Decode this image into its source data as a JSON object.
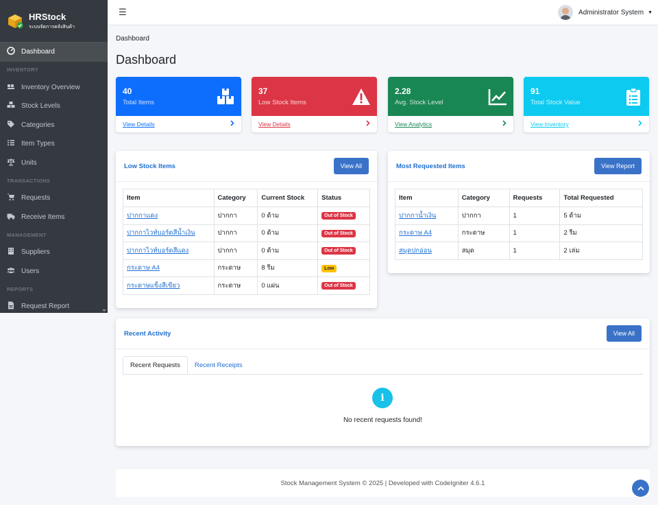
{
  "brand": {
    "title": "HRStock",
    "subtitle": "ระบบจัดการคลังสินค้า"
  },
  "sidebar": {
    "items": [
      {
        "label": "Dashboard",
        "icon": "dashboard-icon",
        "active": true
      },
      {
        "header": "INVENTORY"
      },
      {
        "label": "Inventory Overview",
        "icon": "dolly-icon"
      },
      {
        "label": "Stock Levels",
        "icon": "cubes-icon"
      },
      {
        "label": "Categories",
        "icon": "tags-icon"
      },
      {
        "label": "Item Types",
        "icon": "list-icon"
      },
      {
        "label": "Units",
        "icon": "balance-scale-icon"
      },
      {
        "header": "TRANSACTIONS"
      },
      {
        "label": "Requests",
        "icon": "cart-icon"
      },
      {
        "label": "Receive Items",
        "icon": "truck-icon"
      },
      {
        "header": "MANAGEMENT"
      },
      {
        "label": "Suppliers",
        "icon": "building-icon"
      },
      {
        "label": "Users",
        "icon": "users-icon"
      },
      {
        "header": "REPORTS"
      },
      {
        "label": "Request Report",
        "icon": "file-icon"
      }
    ]
  },
  "navbar": {
    "user": "Administrator System"
  },
  "breadcrumb": "Dashboard",
  "page_title": "Dashboard",
  "stats": [
    {
      "value": "40",
      "label": "Total Items",
      "link": "View Details",
      "color": "#0d6efd",
      "icon": "boxes-icon"
    },
    {
      "value": "37",
      "label": "Low Stock Items",
      "link": "View Details",
      "color": "#dc3545",
      "icon": "warning-icon"
    },
    {
      "value": "2.28",
      "label": "Avg. Stock Level",
      "link": "View Analytics",
      "color": "#198754",
      "icon": "chart-line-icon"
    },
    {
      "value": "91",
      "label": "Total Stock Value",
      "link": "View Inventory",
      "color": "#0dcaf0",
      "icon": "clipboard-list-icon"
    }
  ],
  "low_stock": {
    "title": "Low Stock Items",
    "button": "View All",
    "headers": [
      "Item",
      "Category",
      "Current Stock",
      "Status"
    ],
    "rows": [
      {
        "item": "ปากกาแดง",
        "category": "ปากกา",
        "stock": "0 ด้าม",
        "status": "Out of Stock",
        "kind": "out"
      },
      {
        "item": "ปากกาไวท์บอร์ดสีน้ำเงิน",
        "category": "ปากกา",
        "stock": "0 ด้าม",
        "status": "Out of Stock",
        "kind": "out"
      },
      {
        "item": "ปากกาไวท์บอร์ดสีแดง",
        "category": "ปากกา",
        "stock": "0 ด้าม",
        "status": "Out of Stock",
        "kind": "out"
      },
      {
        "item": "กระดาษ A4",
        "category": "กระดาษ",
        "stock": "8 รีม",
        "status": "Low",
        "kind": "low"
      },
      {
        "item": "กระดาษแข็งสีเขียว",
        "category": "กระดาษ",
        "stock": "0 แผ่น",
        "status": "Out of Stock",
        "kind": "out"
      }
    ]
  },
  "most_requested": {
    "title": "Most Requested Items",
    "button": "View Report",
    "headers": [
      "Item",
      "Category",
      "Requests",
      "Total Requested"
    ],
    "rows": [
      {
        "item": "ปากกาน้ำเงิน",
        "category": "ปากกา",
        "requests": "1",
        "total": "5 ด้าม"
      },
      {
        "item": "กระดาษ A4",
        "category": "กระดาษ",
        "requests": "1",
        "total": "2 รีม"
      },
      {
        "item": "สมุดปกอ่อน",
        "category": "สมุด",
        "requests": "1",
        "total": "2 เล่ม"
      }
    ]
  },
  "recent": {
    "title": "Recent Activity",
    "button": "View All",
    "tabs": [
      "Recent Requests",
      "Recent Receipts"
    ],
    "empty": "No recent requests found!"
  },
  "footer": "Stock Management System © 2025 | Developed with CodeIgniter 4.6.1"
}
